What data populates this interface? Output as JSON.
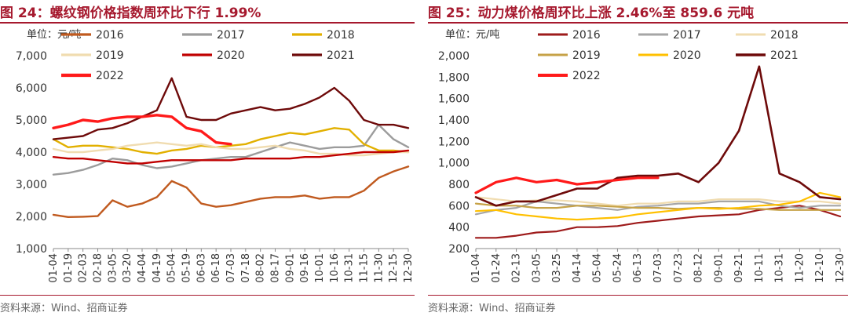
{
  "charts": [
    {
      "title": "图 24：螺纹钢价格指数周环比下行 1.99%",
      "unit": "单位：元/吨",
      "source": "资料来源：Wind、招商证券"
    },
    {
      "title": "图 25：动力煤价格周环比上涨 2.46%至 859.6 元吨",
      "unit": "单位：元/吨",
      "source": "资料来源：Wind、招商证券"
    }
  ],
  "chart_data": [
    {
      "type": "line",
      "title": "螺纹钢价格指数周环比下行 1.99%",
      "ylabel": "元/吨",
      "ylim": [
        1000,
        7000
      ],
      "yticks": [
        1000,
        2000,
        3000,
        4000,
        5000,
        6000,
        7000
      ],
      "ytick_labels": [
        "1,000",
        "2,000",
        "3,000",
        "4,000",
        "5,000",
        "6,000",
        "7,000"
      ],
      "categories": [
        "01-04",
        "01-19",
        "02-03",
        "02-18",
        "03-05",
        "03-20",
        "04-04",
        "04-19",
        "05-04",
        "05-19",
        "06-03",
        "06-18",
        "07-03",
        "07-18",
        "08-02",
        "08-17",
        "09-01",
        "09-16",
        "10-01",
        "10-16",
        "10-31",
        "11-15",
        "11-30",
        "12-15",
        "12-30"
      ],
      "series": [
        {
          "name": "2016",
          "color": "#c05a1f",
          "width": 2.4,
          "values": [
            2050,
            1980,
            1990,
            2010,
            2500,
            2300,
            2400,
            2600,
            3100,
            2900,
            2400,
            2300,
            2350,
            2450,
            2550,
            2600,
            2600,
            2650,
            2550,
            2600,
            2600,
            2800,
            3200,
            3400,
            3550
          ]
        },
        {
          "name": "2017",
          "color": "#9c9c9c",
          "width": 2.4,
          "values": [
            3300,
            3350,
            3450,
            3600,
            3800,
            3750,
            3600,
            3500,
            3550,
            3650,
            3750,
            3800,
            3850,
            3850,
            4000,
            4150,
            4300,
            4200,
            4100,
            4150,
            4150,
            4200,
            4850,
            4400,
            4150
          ]
        },
        {
          "name": "2018",
          "color": "#e2b000",
          "width": 2.4,
          "values": [
            4400,
            4150,
            4200,
            4200,
            4150,
            4100,
            4000,
            3950,
            4050,
            4100,
            4200,
            4150,
            4200,
            4250,
            4400,
            4500,
            4600,
            4550,
            4650,
            4750,
            4700,
            4250,
            4050,
            4050,
            4000
          ]
        },
        {
          "name": "2019",
          "color": "#f0dcb0",
          "width": 2.4,
          "values": [
            4100,
            4000,
            4000,
            4050,
            4100,
            4200,
            4250,
            4300,
            4250,
            4200,
            4250,
            4150,
            4100,
            4100,
            4150,
            4200,
            4100,
            4050,
            3950,
            3950,
            3900,
            3900,
            3950,
            4000,
            4000
          ]
        },
        {
          "name": "2020",
          "color": "#c00000",
          "width": 2.4,
          "values": [
            3850,
            3800,
            3800,
            3750,
            3700,
            3650,
            3650,
            3700,
            3750,
            3750,
            3750,
            3750,
            3750,
            3800,
            3800,
            3800,
            3800,
            3850,
            3850,
            3900,
            3950,
            4000,
            4000,
            4000,
            4050
          ]
        },
        {
          "name": "2021",
          "color": "#6e0a0a",
          "width": 2.4,
          "values": [
            4400,
            4450,
            4500,
            4700,
            4750,
            4900,
            5100,
            5300,
            6300,
            5100,
            5000,
            5000,
            5200,
            5300,
            5400,
            5300,
            5350,
            5500,
            5700,
            6000,
            5600,
            5000,
            4850,
            4850,
            4750
          ]
        },
        {
          "name": "2022",
          "color": "#ff1a1a",
          "width": 3.4,
          "values": [
            4750,
            4850,
            5000,
            4950,
            5050,
            5100,
            5100,
            5150,
            5100,
            4750,
            4650,
            4300,
            4250,
            null,
            null,
            null,
            null,
            null,
            null,
            null,
            null,
            null,
            null,
            null,
            null
          ]
        }
      ]
    },
    {
      "type": "line",
      "title": "动力煤价格周环比上涨 2.46%至 859.6 元吨",
      "ylabel": "元/吨",
      "ylim": [
        200,
        2000
      ],
      "yticks": [
        200,
        400,
        600,
        800,
        1000,
        1200,
        1400,
        1600,
        1800,
        2000
      ],
      "ytick_labels": [
        "200",
        "400",
        "600",
        "800",
        "1,000",
        "1,200",
        "1,400",
        "1,600",
        "1,800",
        "2,000"
      ],
      "categories": [
        "01-04",
        "01-24",
        "02-13",
        "03-05",
        "03-25",
        "04-14",
        "05-04",
        "05-24",
        "06-13",
        "07-03",
        "07-23",
        "08-12",
        "09-01",
        "09-21",
        "10-11",
        "10-31",
        "11-20",
        "12-10",
        "12-30"
      ],
      "series": [
        {
          "name": "2016",
          "color": "#9e1b1b",
          "width": 2.2,
          "values": [
            300,
            300,
            320,
            350,
            360,
            400,
            400,
            410,
            440,
            460,
            480,
            500,
            510,
            520,
            560,
            580,
            600,
            560,
            500
          ]
        },
        {
          "name": "2017",
          "color": "#a6a6a6",
          "width": 2.2,
          "values": [
            520,
            560,
            580,
            640,
            620,
            600,
            580,
            560,
            590,
            600,
            620,
            620,
            640,
            640,
            640,
            600,
            580,
            600,
            600
          ]
        },
        {
          "name": "2018",
          "color": "#f0dcb0",
          "width": 2.2,
          "values": [
            680,
            660,
            640,
            650,
            650,
            640,
            620,
            600,
            620,
            620,
            640,
            640,
            660,
            660,
            660,
            640,
            640,
            640,
            620
          ]
        },
        {
          "name": "2019",
          "color": "#c6a247",
          "width": 2.2,
          "values": [
            620,
            600,
            600,
            580,
            580,
            600,
            600,
            590,
            580,
            580,
            570,
            580,
            580,
            570,
            570,
            560,
            560,
            560,
            560
          ]
        },
        {
          "name": "2020",
          "color": "#ffc000",
          "width": 2.2,
          "values": [
            550,
            560,
            520,
            500,
            480,
            470,
            480,
            490,
            520,
            540,
            560,
            580,
            570,
            580,
            600,
            610,
            640,
            720,
            680
          ]
        },
        {
          "name": "2021",
          "color": "#6e0a0a",
          "width": 2.6,
          "values": [
            680,
            600,
            640,
            640,
            700,
            760,
            760,
            860,
            880,
            880,
            900,
            820,
            1000,
            1300,
            1900,
            900,
            820,
            680,
            660
          ]
        },
        {
          "name": "2022",
          "color": "#ff1a1a",
          "width": 3.2,
          "values": [
            720,
            820,
            860,
            820,
            840,
            800,
            820,
            840,
            860,
            860,
            null,
            null,
            null,
            null,
            null,
            null,
            null,
            null,
            null
          ]
        }
      ]
    }
  ]
}
